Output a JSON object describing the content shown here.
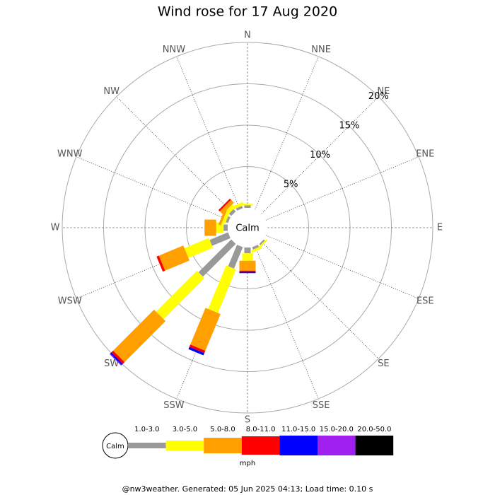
{
  "chart_data": {
    "type": "windrose",
    "title": "Wind rose for 17 Aug 2020",
    "directions": [
      "N",
      "NNE",
      "NE",
      "ENE",
      "E",
      "ESE",
      "SE",
      "SSE",
      "S",
      "SSW",
      "SW",
      "WSW",
      "W",
      "WNW",
      "NW",
      "NNW"
    ],
    "center_label": "Calm",
    "rlim": [
      0,
      20
    ],
    "rticks": [
      {
        "value": 5,
        "label": "5%"
      },
      {
        "value": 10,
        "label": "10%"
      },
      {
        "value": 15,
        "label": "15%"
      },
      {
        "value": 20,
        "label": "20%"
      }
    ],
    "series": [
      {
        "name": "1.0-3.0",
        "color": "#999999",
        "values": [
          0.3,
          0,
          0,
          0,
          0,
          0,
          0.2,
          0.3,
          0.7,
          2.8,
          5.6,
          2.4,
          0.5,
          0.3,
          0.4,
          0.3
        ]
      },
      {
        "name": "3.0-5.0",
        "color": "#ffff00",
        "values": [
          0.2,
          0,
          0,
          0,
          0,
          0,
          0.2,
          0.3,
          0.9,
          5.7,
          7.0,
          3.2,
          0.9,
          0.4,
          0.5,
          0.4
        ]
      },
      {
        "name": "5.0-8.0",
        "color": "#ffa000",
        "values": [
          0,
          0,
          0,
          0,
          0,
          0,
          0,
          0,
          1.2,
          4.8,
          7.0,
          3.2,
          1.4,
          0.3,
          0.5,
          0
        ]
      },
      {
        "name": "8.0-11.0",
        "color": "#ff0000",
        "values": [
          0,
          0,
          0,
          0,
          0,
          0,
          0,
          0,
          0.15,
          0.3,
          0.3,
          0.3,
          0,
          0,
          0.2,
          0
        ]
      },
      {
        "name": "11.0-15.0",
        "color": "#0000ff",
        "values": [
          0,
          0,
          0,
          0,
          0,
          0,
          0,
          0,
          0.15,
          0.3,
          0.2,
          0,
          0,
          0,
          0,
          0
        ]
      },
      {
        "name": "15.0-20.0",
        "color": "#a020f0",
        "values": [
          0,
          0,
          0,
          0,
          0,
          0,
          0,
          0,
          0,
          0,
          0.1,
          0,
          0,
          0,
          0,
          0
        ]
      },
      {
        "name": "20.0-50.0",
        "color": "#000000",
        "values": [
          0,
          0,
          0,
          0,
          0,
          0,
          0,
          0,
          0,
          0,
          0,
          0,
          0,
          0,
          0,
          0
        ]
      }
    ],
    "legend_unit": "mph",
    "footer": "@nw3weather. Generated: 05 Jun 2025 04:13; Load time: 0.10 s"
  }
}
